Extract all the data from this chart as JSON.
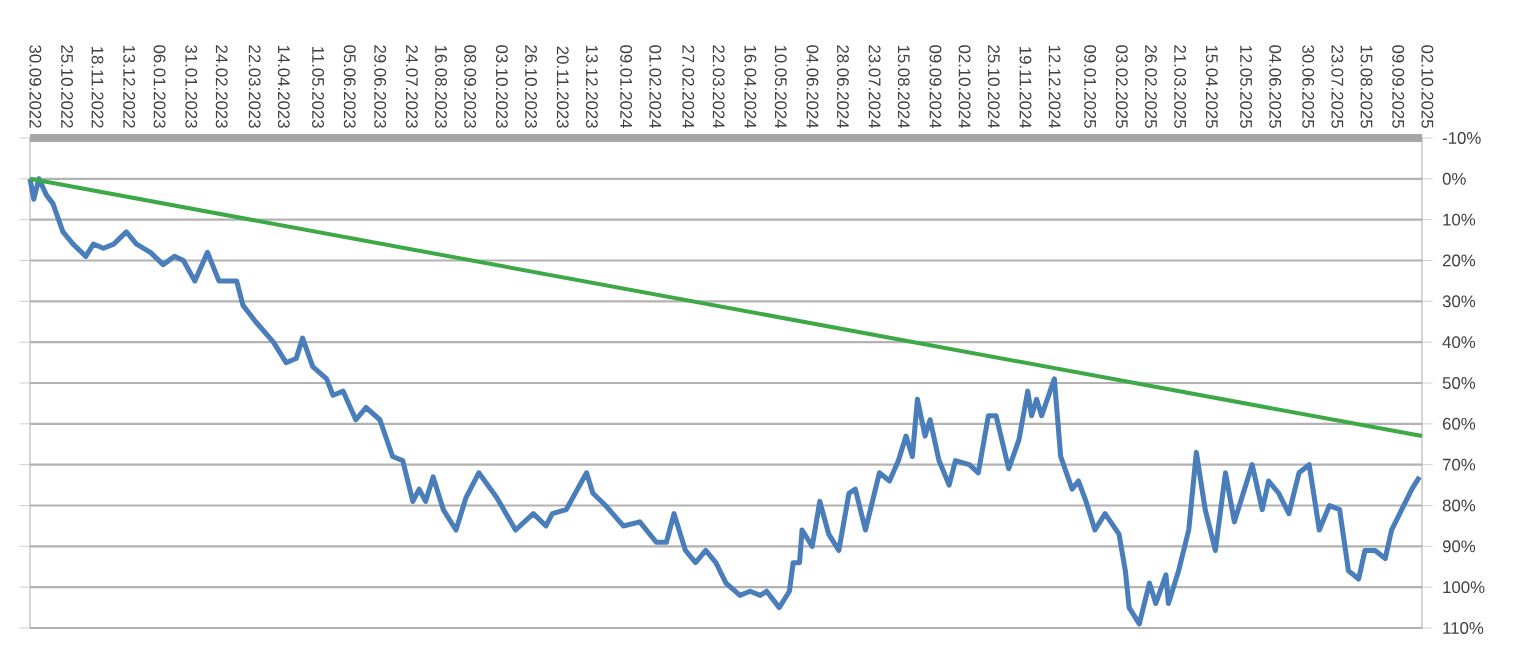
{
  "chart_data": {
    "type": "line",
    "grid": "y",
    "marker": "none",
    "xlim": [
      "2022-09-30",
      "2025-10-02"
    ],
    "ylim": [
      110,
      -10
    ],
    "yticks": [
      {
        "value": -10,
        "label": "-10%"
      },
      {
        "value": 0,
        "label": "0%"
      },
      {
        "value": 10,
        "label": "10%"
      },
      {
        "value": 20,
        "label": "20%"
      },
      {
        "value": 30,
        "label": "30%"
      },
      {
        "value": 40,
        "label": "40%"
      },
      {
        "value": 50,
        "label": "50%"
      },
      {
        "value": 60,
        "label": "60%"
      },
      {
        "value": 70,
        "label": "70%"
      },
      {
        "value": 80,
        "label": "80%"
      },
      {
        "value": 90,
        "label": "90%"
      },
      {
        "value": 100,
        "label": "100%"
      },
      {
        "value": 110,
        "label": "110%"
      }
    ],
    "xticks": [
      {
        "value": "2022-09-30",
        "label": "30.09.2022"
      },
      {
        "value": "2022-10-25",
        "label": "25.10.2022"
      },
      {
        "value": "2022-11-18",
        "label": "18.11.2022"
      },
      {
        "value": "2022-12-13",
        "label": "13.12.2022"
      },
      {
        "value": "2023-01-06",
        "label": "06.01.2023"
      },
      {
        "value": "2023-01-31",
        "label": "31.01.2023"
      },
      {
        "value": "2023-02-24",
        "label": "24.02.2023"
      },
      {
        "value": "2023-03-22",
        "label": "22.03.2023"
      },
      {
        "value": "2023-04-14",
        "label": "14.04.2023"
      },
      {
        "value": "2023-05-11",
        "label": "11.05.2023"
      },
      {
        "value": "2023-06-05",
        "label": "05.06.2023"
      },
      {
        "value": "2023-06-29",
        "label": "29.06.2023"
      },
      {
        "value": "2023-07-24",
        "label": "24.07.2023"
      },
      {
        "value": "2023-08-16",
        "label": "16.08.2023"
      },
      {
        "value": "2023-09-08",
        "label": "08.09.2023"
      },
      {
        "value": "2023-10-03",
        "label": "03.10.2023"
      },
      {
        "value": "2023-10-26",
        "label": "26.10.2023"
      },
      {
        "value": "2023-11-20",
        "label": "20.11.2023"
      },
      {
        "value": "2023-12-13",
        "label": "13.12.2023"
      },
      {
        "value": "2024-01-09",
        "label": "09.01.2024"
      },
      {
        "value": "2024-02-01",
        "label": "01.02.2024"
      },
      {
        "value": "2024-02-27",
        "label": "27.02.2024"
      },
      {
        "value": "2024-03-22",
        "label": "22.03.2024"
      },
      {
        "value": "2024-04-16",
        "label": "16.04.2024"
      },
      {
        "value": "2024-05-10",
        "label": "10.05.2024"
      },
      {
        "value": "2024-06-04",
        "label": "04.06.2024"
      },
      {
        "value": "2024-06-28",
        "label": "28.06.2024"
      },
      {
        "value": "2024-07-23",
        "label": "23.07.2024"
      },
      {
        "value": "2024-08-15",
        "label": "15.08.2024"
      },
      {
        "value": "2024-09-09",
        "label": "09.09.2024"
      },
      {
        "value": "2024-10-02",
        "label": "02.10.2024"
      },
      {
        "value": "2024-10-25",
        "label": "25.10.2024"
      },
      {
        "value": "2024-11-19",
        "label": "19.11.2024"
      },
      {
        "value": "2024-12-12",
        "label": "12.12.2024"
      },
      {
        "value": "2025-01-09",
        "label": "09.01.2025"
      },
      {
        "value": "2025-02-03",
        "label": "03.02.2025"
      },
      {
        "value": "2025-02-26",
        "label": "26.02.2025"
      },
      {
        "value": "2025-03-21",
        "label": "21.03.2025"
      },
      {
        "value": "2025-04-15",
        "label": "15.04.2025"
      },
      {
        "value": "2025-05-12",
        "label": "12.05.2025"
      },
      {
        "value": "2025-06-04",
        "label": "04.06.2025"
      },
      {
        "value": "2025-06-30",
        "label": "30.06.2025"
      },
      {
        "value": "2025-07-23",
        "label": "23.07.2025"
      },
      {
        "value": "2025-08-15",
        "label": "15.08.2025"
      },
      {
        "value": "2025-09-09",
        "label": "09.09.2025"
      },
      {
        "value": "2025-10-02",
        "label": "02.10.2025"
      }
    ],
    "series": [
      {
        "color": "#4a7ebb",
        "x": [
          "2022-09-30",
          "2022-10-03",
          "2022-10-07",
          "2022-10-13",
          "2022-10-18",
          "2022-10-26",
          "2022-11-03",
          "2022-11-13",
          "2022-11-19",
          "2022-11-27",
          "2022-12-05",
          "2022-12-15",
          "2022-12-23",
          "2023-01-03",
          "2023-01-13",
          "2023-01-22",
          "2023-01-29",
          "2023-02-07",
          "2023-02-17",
          "2023-02-26",
          "2023-03-12",
          "2023-03-17",
          "2023-03-27",
          "2023-04-10",
          "2023-04-20",
          "2023-04-28",
          "2023-05-03",
          "2023-05-11",
          "2023-05-22",
          "2023-05-27",
          "2023-06-04",
          "2023-06-14",
          "2023-06-22",
          "2023-07-03",
          "2023-07-13",
          "2023-07-21",
          "2023-07-29",
          "2023-08-03",
          "2023-08-08",
          "2023-08-14",
          "2023-08-22",
          "2023-09-01",
          "2023-09-09",
          "2023-09-19",
          "2023-10-03",
          "2023-10-18",
          "2023-11-01",
          "2023-11-11",
          "2023-11-16",
          "2023-11-27",
          "2023-12-13",
          "2023-12-18",
          "2023-12-28",
          "2024-01-11",
          "2024-01-24",
          "2024-02-06",
          "2024-02-14",
          "2024-02-20",
          "2024-02-29",
          "2024-03-08",
          "2024-03-16",
          "2024-03-24",
          "2024-04-01",
          "2024-04-12",
          "2024-04-20",
          "2024-04-28",
          "2024-05-03",
          "2024-05-13",
          "2024-05-21",
          "2024-05-24",
          "2024-05-29",
          "2024-05-31",
          "2024-06-08",
          "2024-06-14",
          "2024-06-21",
          "2024-06-29",
          "2024-07-07",
          "2024-07-12",
          "2024-07-20",
          "2024-07-31",
          "2024-08-08",
          "2024-08-15",
          "2024-08-21",
          "2024-08-26",
          "2024-08-30",
          "2024-09-05",
          "2024-09-09",
          "2024-09-16",
          "2024-09-24",
          "2024-09-29",
          "2024-10-10",
          "2024-10-17",
          "2024-10-25",
          "2024-10-31",
          "2024-11-10",
          "2024-11-18",
          "2024-11-25",
          "2024-11-28",
          "2024-12-02",
          "2024-12-06",
          "2024-12-16",
          "2024-12-21",
          "2024-12-30",
          "2025-01-04",
          "2025-01-10",
          "2025-01-17",
          "2025-01-25",
          "2025-02-05",
          "2025-02-10",
          "2025-02-13",
          "2025-02-21",
          "2025-03-01",
          "2025-03-06",
          "2025-03-14",
          "2025-03-16",
          "2025-03-24",
          "2025-04-01",
          "2025-04-07",
          "2025-04-14",
          "2025-04-22",
          "2025-04-30",
          "2025-05-07",
          "2025-05-13",
          "2025-05-21",
          "2025-05-29",
          "2025-06-03",
          "2025-06-11",
          "2025-06-19",
          "2025-06-27",
          "2025-07-05",
          "2025-07-13",
          "2025-07-21",
          "2025-07-29",
          "2025-08-05",
          "2025-08-13",
          "2025-08-18",
          "2025-08-26",
          "2025-09-03",
          "2025-09-08",
          "2025-09-16",
          "2025-09-24",
          "2025-09-30"
        ],
        "values": [
          0,
          5,
          0,
          4,
          6,
          13,
          16,
          19,
          16,
          17,
          16,
          13,
          16,
          18,
          21,
          19,
          20,
          25,
          18,
          25,
          25,
          31,
          35,
          40,
          45,
          44,
          39,
          46,
          49,
          53,
          52,
          59,
          56,
          59,
          68,
          69,
          79,
          76,
          79,
          73,
          81,
          86,
          78,
          72,
          78,
          86,
          82,
          85,
          82,
          81,
          72,
          77,
          80,
          85,
          84,
          89,
          89,
          82,
          91,
          94,
          91,
          94,
          99,
          102,
          101,
          102,
          101,
          105,
          101,
          94,
          94,
          86,
          90,
          79,
          87,
          91,
          77,
          76,
          86,
          72,
          74,
          69,
          63,
          68,
          54,
          63,
          59,
          69,
          75,
          69,
          70,
          72,
          58,
          58,
          71,
          64,
          52,
          58,
          54,
          58,
          49,
          68,
          76,
          74,
          79,
          86,
          82,
          87,
          96,
          105,
          109,
          99,
          104,
          97,
          104,
          96,
          86,
          67,
          81,
          91,
          72,
          84,
          78,
          70,
          81,
          74,
          77,
          82,
          72,
          70,
          86,
          80,
          81,
          96,
          98,
          91,
          91,
          93,
          86,
          81,
          76,
          73
        ]
      },
      {
        "type": "line",
        "color": "#3ca846",
        "x": [
          "2022-09-30",
          "2025-10-02"
        ],
        "values": [
          0,
          63
        ]
      }
    ]
  }
}
